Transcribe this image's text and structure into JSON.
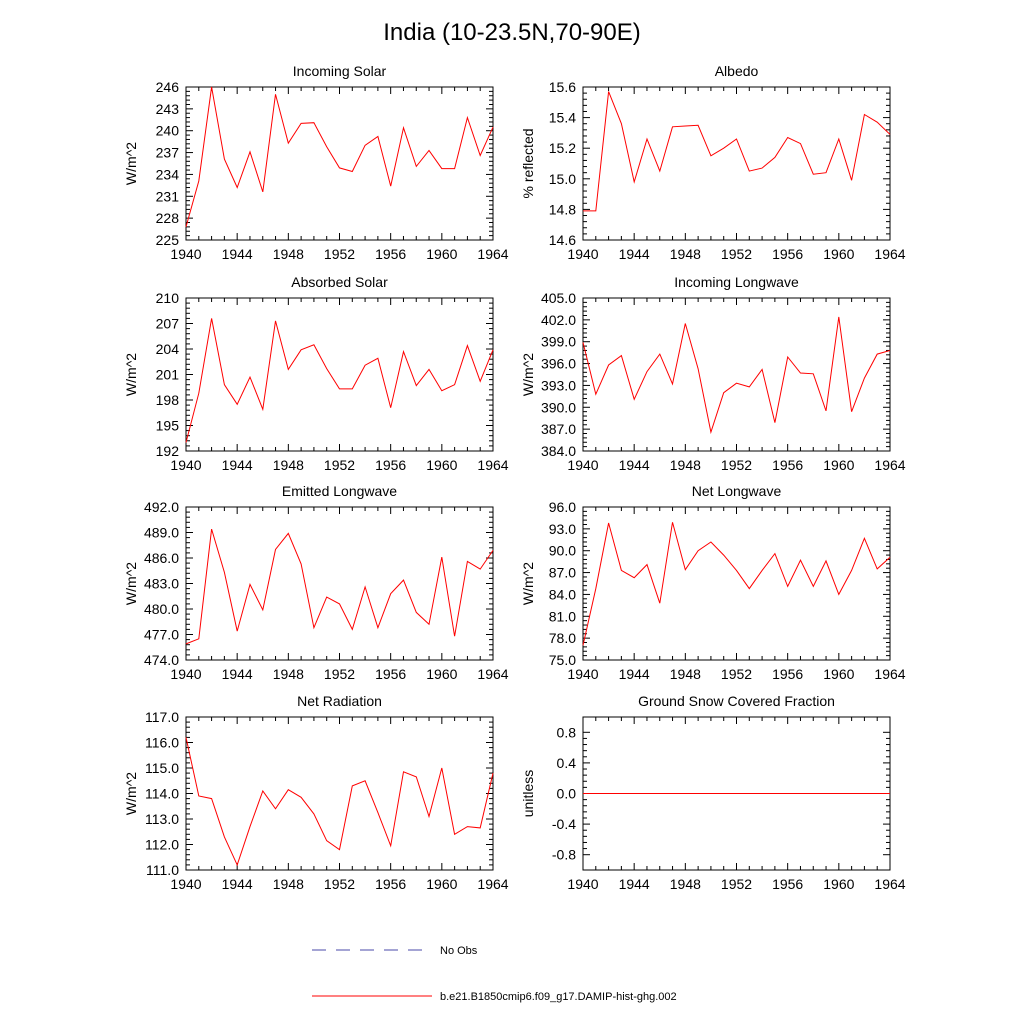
{
  "page": {
    "title": "India (10-23.5N,70-90E)"
  },
  "legend": {
    "items": [
      {
        "label": "No Obs",
        "style": "dashed",
        "color": "#4a4aa8"
      },
      {
        "label": "b.e21.B1850cmip6.f09_g17.DAMIP-hist-ghg.002",
        "style": "solid",
        "color": "#ff0000"
      }
    ]
  },
  "colors": {
    "series": "#ff0000",
    "obs": "#4a4aa8",
    "axis": "#000000"
  },
  "chart_data": [
    {
      "type": "line",
      "title": "Incoming Solar",
      "ylabel": "W/m^2",
      "xlim": [
        1940,
        1964
      ],
      "ylim": [
        225,
        246
      ],
      "xticks": [
        "1940",
        "1944",
        "1948",
        "1952",
        "1956",
        "1960",
        "1964"
      ],
      "yticks": [
        "225",
        "228",
        "231",
        "234",
        "237",
        "240",
        "243",
        "246"
      ],
      "x": [
        1940,
        1941,
        1942,
        1943,
        1944,
        1945,
        1946,
        1947,
        1948,
        1949,
        1950,
        1951,
        1952,
        1953,
        1954,
        1955,
        1956,
        1957,
        1958,
        1959,
        1960,
        1961,
        1962,
        1963,
        1964
      ],
      "series": [
        {
          "values": [
            226.8,
            233.1,
            246.0,
            236.1,
            232.2,
            237.1,
            231.6,
            245.0,
            238.3,
            241.0,
            241.1,
            237.8,
            234.9,
            234.4,
            238.0,
            239.2,
            232.4,
            240.4,
            235.1,
            237.3,
            234.8,
            234.8,
            241.8,
            236.6,
            240.5
          ]
        }
      ]
    },
    {
      "type": "line",
      "title": "Albedo",
      "ylabel": "% reflected",
      "xlim": [
        1940,
        1964
      ],
      "ylim": [
        14.6,
        15.6
      ],
      "xticks": [
        "1940",
        "1944",
        "1948",
        "1952",
        "1956",
        "1960",
        "1964"
      ],
      "yticks": [
        "14.6",
        "14.8",
        "15.0",
        "15.2",
        "15.4",
        "15.6"
      ],
      "x": [
        1940,
        1941,
        1942,
        1943,
        1944,
        1945,
        1946,
        1947,
        1948,
        1949,
        1950,
        1951,
        1952,
        1953,
        1954,
        1955,
        1956,
        1957,
        1958,
        1959,
        1960,
        1961,
        1962,
        1963,
        1964
      ],
      "series": [
        {
          "values": [
            14.79,
            14.79,
            15.57,
            15.36,
            14.98,
            15.26,
            15.05,
            15.34,
            15.345,
            15.35,
            15.15,
            15.2,
            15.26,
            15.05,
            15.07,
            15.14,
            15.27,
            15.23,
            15.03,
            15.04,
            15.26,
            14.99,
            15.42,
            15.37,
            15.29
          ]
        }
      ]
    },
    {
      "type": "line",
      "title": "Absorbed Solar",
      "ylabel": "W/m^2",
      "xlim": [
        1940,
        1964
      ],
      "ylim": [
        192,
        210
      ],
      "xticks": [
        "1940",
        "1944",
        "1948",
        "1952",
        "1956",
        "1960",
        "1964"
      ],
      "yticks": [
        "192",
        "195",
        "198",
        "201",
        "204",
        "207",
        "210"
      ],
      "x": [
        1940,
        1941,
        1942,
        1943,
        1944,
        1945,
        1946,
        1947,
        1948,
        1949,
        1950,
        1951,
        1952,
        1953,
        1954,
        1955,
        1956,
        1957,
        1958,
        1959,
        1960,
        1961,
        1962,
        1963,
        1964
      ],
      "series": [
        {
          "values": [
            193.0,
            198.8,
            207.6,
            199.8,
            197.5,
            200.7,
            196.9,
            207.3,
            201.6,
            203.9,
            204.5,
            201.7,
            199.3,
            199.3,
            202.1,
            202.9,
            197.1,
            203.7,
            199.7,
            201.6,
            199.1,
            199.8,
            204.4,
            200.2,
            203.9
          ]
        }
      ]
    },
    {
      "type": "line",
      "title": "Incoming Longwave",
      "ylabel": "W/m^2",
      "xlim": [
        1940,
        1964
      ],
      "ylim": [
        384.0,
        405.0
      ],
      "xticks": [
        "1940",
        "1944",
        "1948",
        "1952",
        "1956",
        "1960",
        "1964"
      ],
      "yticks": [
        "384.0",
        "387.0",
        "390.0",
        "393.0",
        "396.0",
        "399.0",
        "402.0",
        "405.0"
      ],
      "x": [
        1940,
        1941,
        1942,
        1943,
        1944,
        1945,
        1946,
        1947,
        1948,
        1949,
        1950,
        1951,
        1952,
        1953,
        1954,
        1955,
        1956,
        1957,
        1958,
        1959,
        1960,
        1961,
        1962,
        1963,
        1964
      ],
      "series": [
        {
          "values": [
            398.9,
            391.8,
            395.8,
            397.1,
            391.1,
            394.9,
            397.3,
            393.2,
            401.5,
            395.3,
            386.6,
            392.0,
            393.3,
            392.8,
            395.2,
            387.9,
            396.9,
            394.7,
            394.6,
            389.5,
            402.4,
            389.4,
            394.0,
            397.3,
            397.8
          ]
        }
      ]
    },
    {
      "type": "line",
      "title": "Emitted Longwave",
      "ylabel": "W/m^2",
      "xlim": [
        1940,
        1964
      ],
      "ylim": [
        474.0,
        492.0
      ],
      "xticks": [
        "1940",
        "1944",
        "1948",
        "1952",
        "1956",
        "1960",
        "1964"
      ],
      "yticks": [
        "474.0",
        "477.0",
        "480.0",
        "483.0",
        "486.0",
        "489.0",
        "492.0"
      ],
      "x": [
        1940,
        1941,
        1942,
        1943,
        1944,
        1945,
        1946,
        1947,
        1948,
        1949,
        1950,
        1951,
        1952,
        1953,
        1954,
        1955,
        1956,
        1957,
        1958,
        1959,
        1960,
        1961,
        1962,
        1963,
        1964
      ],
      "series": [
        {
          "values": [
            475.9,
            476.5,
            489.4,
            484.3,
            477.4,
            482.9,
            479.9,
            487.0,
            488.9,
            485.3,
            477.8,
            481.4,
            480.6,
            477.6,
            482.6,
            477.8,
            481.8,
            483.4,
            479.6,
            478.2,
            486.1,
            476.8,
            485.6,
            484.7,
            486.9
          ]
        }
      ]
    },
    {
      "type": "line",
      "title": "Net Longwave",
      "ylabel": "W/m^2",
      "xlim": [
        1940,
        1964
      ],
      "ylim": [
        75.0,
        96.0
      ],
      "xticks": [
        "1940",
        "1944",
        "1948",
        "1952",
        "1956",
        "1960",
        "1964"
      ],
      "yticks": [
        "75.0",
        "78.0",
        "81.0",
        "84.0",
        "87.0",
        "90.0",
        "93.0",
        "96.0"
      ],
      "x": [
        1940,
        1941,
        1942,
        1943,
        1944,
        1945,
        1946,
        1947,
        1948,
        1949,
        1950,
        1951,
        1952,
        1953,
        1954,
        1955,
        1956,
        1957,
        1958,
        1959,
        1960,
        1961,
        1962,
        1963,
        1964
      ],
      "series": [
        {
          "values": [
            77.0,
            84.8,
            93.8,
            87.3,
            86.3,
            88.1,
            82.8,
            93.9,
            87.4,
            90.0,
            91.2,
            89.4,
            87.3,
            84.8,
            87.3,
            89.6,
            85.1,
            88.7,
            85.1,
            88.6,
            84.0,
            87.3,
            91.7,
            87.5,
            89.1
          ]
        }
      ]
    },
    {
      "type": "line",
      "title": "Net Radiation",
      "ylabel": "W/m^2",
      "xlim": [
        1940,
        1964
      ],
      "ylim": [
        111.0,
        117.0
      ],
      "xticks": [
        "1940",
        "1944",
        "1948",
        "1952",
        "1956",
        "1960",
        "1964"
      ],
      "yticks": [
        "111.0",
        "112.0",
        "113.0",
        "114.0",
        "115.0",
        "116.0",
        "117.0"
      ],
      "x": [
        1940,
        1941,
        1942,
        1943,
        1944,
        1945,
        1946,
        1947,
        1948,
        1949,
        1950,
        1951,
        1952,
        1953,
        1954,
        1955,
        1956,
        1957,
        1958,
        1959,
        1960,
        1961,
        1962,
        1963,
        1964
      ],
      "series": [
        {
          "values": [
            116.2,
            113.9,
            113.8,
            112.3,
            111.2,
            112.7,
            114.1,
            113.4,
            114.15,
            113.85,
            113.2,
            112.15,
            111.8,
            114.3,
            114.5,
            113.25,
            111.95,
            114.85,
            114.65,
            113.1,
            115.0,
            112.4,
            112.7,
            112.65,
            114.8
          ]
        }
      ]
    },
    {
      "type": "line",
      "title": "Ground Snow Covered Fraction",
      "ylabel": "unitless",
      "xlim": [
        1940,
        1964
      ],
      "ylim": [
        -1.0,
        1.0
      ],
      "xticks": [
        "1940",
        "1944",
        "1948",
        "1952",
        "1956",
        "1960",
        "1964"
      ],
      "yticks": [
        "-0.8",
        "-0.4",
        "0.0",
        "0.4",
        "0.8"
      ],
      "ytick_values": [
        -0.8,
        -0.4,
        0.0,
        0.4,
        0.8
      ],
      "x": [
        1940,
        1964
      ],
      "series": [
        {
          "values": [
            0.0,
            0.0
          ]
        }
      ]
    }
  ]
}
